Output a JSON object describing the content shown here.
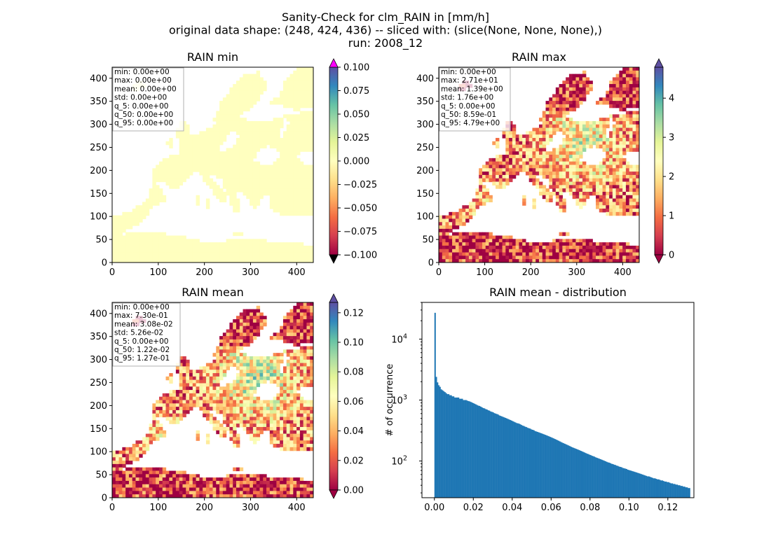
{
  "figure": {
    "suptitle_lines": [
      "Sanity-Check for clm_RAIN in [mm/h]",
      "original data shape: (248, 424, 436) -- sliced with: (slice(None, None, None),)",
      "run: 2008_12"
    ]
  },
  "chart_data": [
    {
      "type": "heatmap",
      "title": "RAIN min",
      "xlim": [
        0,
        436
      ],
      "ylim": [
        0,
        424
      ],
      "x_ticks": [
        "0",
        "100",
        "200",
        "300",
        "400"
      ],
      "y_ticks": [
        "0",
        "50",
        "100",
        "150",
        "200",
        "250",
        "300",
        "350",
        "400"
      ],
      "colorbar": {
        "colormap": "Spectral",
        "range": [
          -0.1,
          0.1
        ],
        "extend": "both",
        "ticks": [
          "0.100",
          "0.075",
          "0.050",
          "0.025",
          "0.000",
          "−0.025",
          "−0.050",
          "−0.075",
          "−0.100"
        ]
      },
      "stats": [
        "min: 0.00e+00",
        "max: 0.00e+00",
        "mean: 0.00e+00",
        "std: 0.00e+00",
        "q_5: 0.00e+00",
        "q_50: 0.00e+00",
        "q_95: 0.00e+00"
      ]
    },
    {
      "type": "heatmap",
      "title": "RAIN max",
      "xlim": [
        0,
        436
      ],
      "ylim": [
        0,
        424
      ],
      "x_ticks": [
        "0",
        "100",
        "200",
        "300",
        "400"
      ],
      "y_ticks": [
        "0",
        "50",
        "100",
        "150",
        "200",
        "250",
        "300",
        "350",
        "400"
      ],
      "colorbar": {
        "colormap": "Spectral",
        "range": [
          0,
          4.79
        ],
        "extend": "both",
        "ticks": [
          "4",
          "3",
          "2",
          "1",
          "0"
        ]
      },
      "stats": [
        "min: 0.00e+00",
        "max: 2.71e+01",
        "mean: 1.39e+00",
        "std: 1.76e+00",
        "q_5: 0.00e+00",
        "q_50: 8.59e-01",
        "q_95: 4.79e+00"
      ]
    },
    {
      "type": "heatmap",
      "title": "RAIN mean",
      "xlim": [
        0,
        436
      ],
      "ylim": [
        0,
        424
      ],
      "x_ticks": [
        "0",
        "100",
        "200",
        "300",
        "400"
      ],
      "y_ticks": [
        "0",
        "50",
        "100",
        "150",
        "200",
        "250",
        "300",
        "350",
        "400"
      ],
      "colorbar": {
        "colormap": "Spectral",
        "range": [
          0,
          0.127
        ],
        "extend": "both",
        "ticks": [
          "0.12",
          "0.10",
          "0.08",
          "0.06",
          "0.04",
          "0.02",
          "0.00"
        ]
      },
      "stats": [
        "min: 0.00e+00",
        "max: 7.30e-01",
        "mean: 3.08e-02",
        "std: 5.26e-02",
        "q_5: 0.00e+00",
        "q_50: 1.22e-02",
        "q_95: 1.27e-01"
      ]
    },
    {
      "type": "histogram",
      "title": "RAIN mean - distribution",
      "ylabel": "# of occurrence",
      "y_scale": "log",
      "xlim": [
        -0.0064,
        0.1334
      ],
      "ylim": [
        25,
        40000
      ],
      "x_ticks": [
        "0.00",
        "0.02",
        "0.04",
        "0.06",
        "0.08",
        "0.10",
        "0.12"
      ],
      "y_ticks": [
        "10^2",
        "10^3",
        "10^4"
      ],
      "bar_color": "#1f77b4",
      "bin_start": 0.0,
      "bin_width": 0.000635,
      "counts": [
        27000,
        2400,
        1950,
        1750,
        1650,
        1500,
        1450,
        1400,
        1350,
        1300,
        1250,
        1250,
        1200,
        1200,
        1150,
        1150,
        1100,
        1100,
        1100,
        1100,
        1050,
        1050,
        1050,
        1000,
        1000,
        1000,
        980,
        960,
        950,
        930,
        910,
        890,
        870,
        850,
        830,
        810,
        800,
        780,
        760,
        740,
        730,
        710,
        700,
        680,
        670,
        650,
        640,
        630,
        610,
        600,
        590,
        580,
        560,
        550,
        540,
        530,
        520,
        510,
        500,
        490,
        480,
        470,
        460,
        450,
        440,
        430,
        420,
        415,
        410,
        400,
        390,
        380,
        375,
        365,
        360,
        350,
        345,
        340,
        330,
        325,
        320,
        310,
        305,
        300,
        295,
        290,
        285,
        280,
        275,
        270,
        265,
        260,
        255,
        250,
        245,
        240,
        235,
        230,
        225,
        220,
        215,
        210,
        205,
        200,
        196,
        192,
        188,
        184,
        180,
        176,
        172,
        168,
        165,
        162,
        159,
        156,
        153,
        150,
        147,
        144,
        141,
        138,
        135,
        132,
        130,
        127,
        125,
        122,
        120,
        118,
        115,
        113,
        111,
        109,
        107,
        105,
        103,
        101,
        99,
        97,
        95,
        94,
        92,
        90,
        89,
        87,
        86,
        84,
        83,
        81,
        80,
        79,
        77,
        76,
        75,
        74,
        72,
        71,
        70,
        69,
        68,
        67,
        66,
        65,
        64,
        63,
        62,
        61,
        60,
        59,
        58,
        57,
        56,
        56,
        55,
        54,
        53,
        52,
        52,
        51,
        50,
        50,
        49,
        48,
        48,
        47,
        46,
        46,
        45,
        45,
        44,
        43,
        43,
        42,
        42,
        41,
        41,
        40,
        40,
        39,
        39,
        38,
        38,
        37,
        37,
        36,
        36
      ]
    }
  ]
}
